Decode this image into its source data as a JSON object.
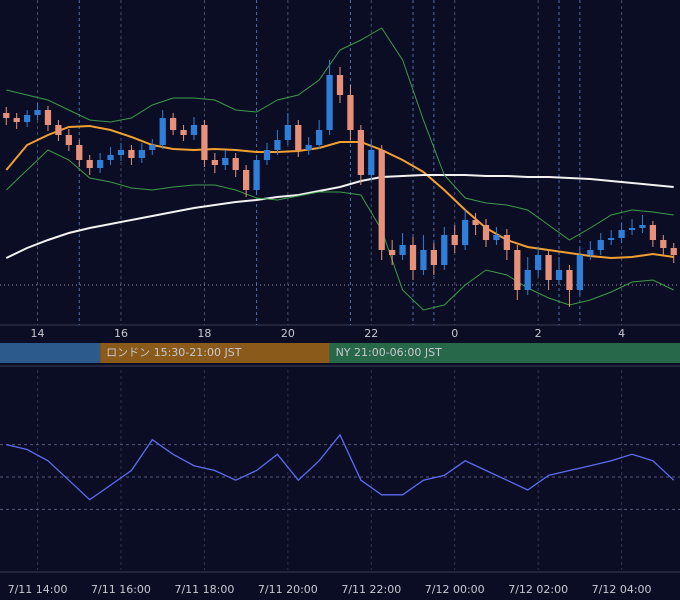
{
  "chart_data": [
    {
      "type": "candlestick",
      "x": [
        13.25,
        13.5,
        13.75,
        14,
        14.25,
        14.5,
        14.75,
        15,
        15.25,
        15.5,
        15.75,
        16,
        16.25,
        16.5,
        16.75,
        17,
        17.25,
        17.5,
        17.75,
        18,
        18.25,
        18.5,
        18.75,
        19,
        19.25,
        19.5,
        19.75,
        20,
        20.25,
        20.5,
        20.75,
        21,
        21.25,
        21.5,
        21.75,
        22,
        22.25,
        22.5,
        22.75,
        23,
        23.25,
        23.5,
        23.75,
        24,
        24.25,
        24.5,
        24.75,
        25,
        25.25,
        25.5,
        25.75,
        26,
        26.25,
        26.5,
        26.75,
        27,
        27.25,
        27.5,
        27.75,
        28,
        28.25,
        28.5,
        28.75,
        29,
        29.25
      ],
      "ohlc": [
        [
          212,
          218,
          200,
          207
        ],
        [
          207,
          212,
          196,
          203
        ],
        [
          203,
          215,
          198,
          210
        ],
        [
          210,
          222,
          205,
          215
        ],
        [
          215,
          219,
          194,
          200
        ],
        [
          200,
          205,
          184,
          190
        ],
        [
          190,
          196,
          174,
          180
        ],
        [
          180,
          185,
          158,
          165
        ],
        [
          165,
          170,
          150,
          157
        ],
        [
          157,
          172,
          152,
          165
        ],
        [
          165,
          178,
          160,
          170
        ],
        [
          170,
          182,
          164,
          175
        ],
        [
          175,
          180,
          160,
          167
        ],
        [
          167,
          182,
          162,
          175
        ],
        [
          175,
          186,
          170,
          180
        ],
        [
          180,
          215,
          176,
          207
        ],
        [
          207,
          212,
          190,
          195
        ],
        [
          195,
          200,
          184,
          190
        ],
        [
          190,
          208,
          185,
          200
        ],
        [
          200,
          205,
          158,
          165
        ],
        [
          165,
          172,
          152,
          160
        ],
        [
          160,
          175,
          155,
          167
        ],
        [
          167,
          172,
          148,
          155
        ],
        [
          155,
          160,
          128,
          135
        ],
        [
          135,
          170,
          130,
          165
        ],
        [
          165,
          182,
          160,
          175
        ],
        [
          175,
          195,
          170,
          185
        ],
        [
          185,
          212,
          180,
          200
        ],
        [
          200,
          205,
          168,
          175
        ],
        [
          175,
          188,
          170,
          180
        ],
        [
          180,
          205,
          176,
          195
        ],
        [
          195,
          265,
          190,
          250
        ],
        [
          250,
          258,
          222,
          230
        ],
        [
          230,
          240,
          185,
          195
        ],
        [
          195,
          200,
          140,
          150
        ],
        [
          150,
          185,
          145,
          175
        ],
        [
          175,
          180,
          65,
          75
        ],
        [
          75,
          85,
          60,
          70
        ],
        [
          70,
          92,
          65,
          80
        ],
        [
          80,
          88,
          45,
          55
        ],
        [
          55,
          90,
          50,
          75
        ],
        [
          75,
          82,
          50,
          60
        ],
        [
          60,
          98,
          55,
          90
        ],
        [
          90,
          100,
          72,
          80
        ],
        [
          80,
          115,
          75,
          105
        ],
        [
          105,
          112,
          90,
          100
        ],
        [
          100,
          106,
          78,
          85
        ],
        [
          85,
          98,
          80,
          90
        ],
        [
          90,
          96,
          65,
          75
        ],
        [
          75,
          80,
          25,
          35
        ],
        [
          35,
          68,
          30,
          55
        ],
        [
          55,
          78,
          48,
          70
        ],
        [
          70,
          75,
          35,
          45
        ],
        [
          45,
          68,
          40,
          55
        ],
        [
          55,
          60,
          18,
          35
        ],
        [
          35,
          78,
          30,
          70
        ],
        [
          70,
          84,
          65,
          75
        ],
        [
          75,
          92,
          70,
          85
        ],
        [
          85,
          95,
          80,
          87
        ],
        [
          87,
          102,
          82,
          95
        ],
        [
          95,
          106,
          90,
          97
        ],
        [
          97,
          110,
          92,
          100
        ],
        [
          100,
          104,
          78,
          85
        ],
        [
          85,
          90,
          70,
          77
        ],
        [
          77,
          82,
          62,
          70
        ]
      ],
      "up_color": "#2f7fd8",
      "down_color": "#e8917a",
      "series": [
        {
          "color": "#f0a030",
          "x": [
            13.25,
            13.75,
            14.25,
            14.75,
            15.25,
            15.75,
            16.25,
            16.75,
            17.25,
            17.75,
            18.25,
            18.75,
            19.25,
            19.75,
            20.25,
            20.75,
            21.25,
            21.75,
            22.25,
            22.75,
            23.25,
            23.75,
            24.25,
            24.75,
            25.25,
            25.75,
            26.25,
            26.75,
            27.25,
            27.75,
            28.25,
            28.75,
            29.25
          ],
          "values": [
            155,
            180,
            190,
            198,
            199,
            195,
            188,
            180,
            176,
            175,
            176,
            175,
            173,
            173,
            174,
            177,
            183,
            183,
            175,
            165,
            153,
            135,
            115,
            97,
            85,
            78,
            75,
            72,
            69,
            67,
            68,
            71,
            68
          ]
        },
        {
          "color": "#f2f2f2",
          "x": [
            13.25,
            13.75,
            14.25,
            14.75,
            15.25,
            15.75,
            16.25,
            16.75,
            17.25,
            17.75,
            18.25,
            18.75,
            19.25,
            19.75,
            20.25,
            20.75,
            21.25,
            21.75,
            22.25,
            22.75,
            23.25,
            23.75,
            24.25,
            24.75,
            25.25,
            25.75,
            26.25,
            26.75,
            27.25,
            27.75,
            28.25,
            28.75,
            29.25
          ],
          "values": [
            67,
            77,
            85,
            92,
            97,
            101,
            105,
            109,
            113,
            117,
            120,
            123,
            125,
            128,
            130,
            134,
            138,
            144,
            148,
            149,
            150,
            150,
            150,
            149,
            149,
            148,
            148,
            147,
            146,
            144,
            142,
            140,
            138
          ]
        },
        {
          "color": "#3f9a4a",
          "x": [
            13.25,
            13.75,
            14.25,
            14.75,
            15.25,
            15.75,
            16.25,
            16.75,
            17.25,
            17.75,
            18.25,
            18.75,
            19.25,
            19.75,
            20.25,
            20.75,
            21.25,
            21.75,
            22.25,
            22.75,
            23.25,
            23.75,
            24.25,
            24.75,
            25.25,
            25.75,
            26.25,
            26.75,
            27.25,
            27.75,
            28.25,
            28.75,
            29.25
          ],
          "values": [
            235,
            230,
            225,
            215,
            205,
            203,
            207,
            220,
            227,
            227,
            225,
            215,
            213,
            225,
            230,
            245,
            275,
            285,
            297,
            265,
            205,
            150,
            127,
            122,
            120,
            115,
            100,
            85,
            97,
            110,
            115,
            113,
            110
          ]
        },
        {
          "color": "#3f9a4a",
          "x": [
            13.25,
            13.75,
            14.25,
            14.75,
            15.25,
            15.75,
            16.25,
            16.75,
            17.25,
            17.75,
            18.25,
            18.75,
            19.25,
            19.75,
            20.25,
            20.75,
            21.25,
            21.75,
            22.25,
            22.75,
            23.25,
            23.75,
            24.25,
            24.75,
            25.25,
            25.75,
            26.25,
            26.75,
            27.25,
            27.75,
            28.25,
            28.75,
            29.25
          ],
          "values": [
            135,
            155,
            175,
            165,
            147,
            143,
            137,
            135,
            138,
            140,
            140,
            135,
            127,
            125,
            129,
            133,
            133,
            130,
            95,
            35,
            15,
            20,
            40,
            55,
            50,
            37,
            27,
            20,
            25,
            33,
            43,
            45,
            35
          ]
        }
      ],
      "hline": 40,
      "event_lines": [
        15,
        19.25,
        21.5,
        23,
        23.5,
        26.5,
        27
      ],
      "xlim": [
        13.1,
        29.4
      ],
      "ylim": [
        0,
        325
      ],
      "xticks": [
        14,
        16,
        18,
        20,
        22,
        {
          "value": 24,
          "label": "0"
        },
        {
          "value": 26,
          "label": "2"
        },
        {
          "value": 28,
          "label": "4"
        }
      ],
      "sessions": [
        {
          "end": 15.5,
          "color": "#2c5a8c"
        },
        {
          "label": "ロンドン 15:30-21:00 JST",
          "start": 15.5,
          "end": 21,
          "color": "#8a5a1a"
        },
        {
          "label": "NY 21:00-06:00 JST",
          "start": 21,
          "end": 30,
          "color": "#27684a"
        }
      ]
    },
    {
      "type": "line",
      "x": [
        13.25,
        13.75,
        14.25,
        14.75,
        15.25,
        15.75,
        16.25,
        16.75,
        17.25,
        17.75,
        18.25,
        18.75,
        19.25,
        19.75,
        20.25,
        20.75,
        21.25,
        21.75,
        22.25,
        22.75,
        23.25,
        23.75,
        24.25,
        24.75,
        25.25,
        25.75,
        26.25,
        26.75,
        27.25,
        27.75,
        28.25,
        28.75,
        29.25
      ],
      "values": [
        70,
        67,
        60,
        48,
        36,
        45,
        54,
        73,
        64,
        57,
        54,
        48,
        54,
        64,
        48,
        60,
        76,
        48,
        39,
        39,
        48,
        51,
        60,
        54,
        48,
        42,
        51,
        54,
        57,
        60,
        64,
        60,
        48
      ],
      "color": "#5b6cf0",
      "hlines": [
        30,
        50,
        70
      ],
      "xlim": [
        13.1,
        29.4
      ],
      "ylim": [
        0,
        100
      ],
      "xticks": [
        {
          "value": 14,
          "label": "7/11 14:00"
        },
        {
          "value": 16,
          "label": "7/11 16:00"
        },
        {
          "value": 18,
          "label": "7/11 18:00"
        },
        {
          "value": 20,
          "label": "7/11 20:00"
        },
        {
          "value": 22,
          "label": "7/11 22:00"
        },
        {
          "value": 24,
          "label": "7/12 00:00"
        },
        {
          "value": 26,
          "label": "7/12 02:00"
        },
        {
          "value": 28,
          "label": "7/12 04:00"
        }
      ]
    }
  ]
}
